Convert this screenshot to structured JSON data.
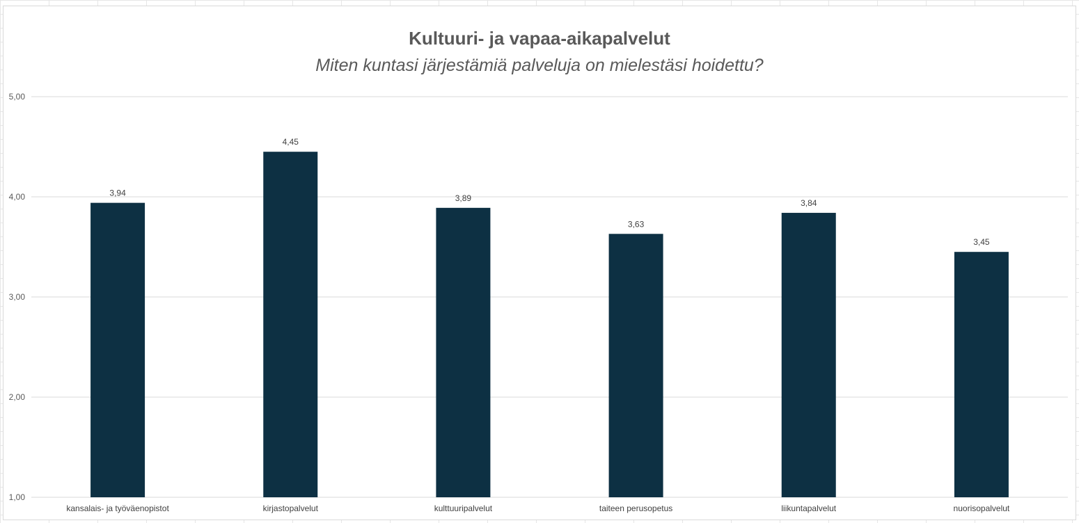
{
  "chart_data": {
    "type": "bar",
    "title": "Kultuuri- ja vapaa-aikapalvelut",
    "subtitle": "Miten kuntasi järjestämiä palveluja on mielestäsi hoidettu?",
    "categories": [
      "kansalais- ja työväenopistot",
      "kirjastopalvelut",
      "kulttuuripalvelut",
      "taiteen perusopetus",
      "liikuntapalvelut",
      "nuorisopalvelut"
    ],
    "values": [
      3.94,
      4.45,
      3.89,
      3.63,
      3.84,
      3.45
    ],
    "data_labels": [
      "3,94",
      "4,45",
      "3,89",
      "3,63",
      "3,84",
      "3,45"
    ],
    "ylim": [
      1,
      5
    ],
    "yticks": [
      "1,00",
      "2,00",
      "3,00",
      "4,00",
      "5,00"
    ],
    "ytick_values": [
      1,
      2,
      3,
      4,
      5
    ],
    "grid": true,
    "bar_color": "#0d3043",
    "gridline_color": "#d9d9d9"
  }
}
